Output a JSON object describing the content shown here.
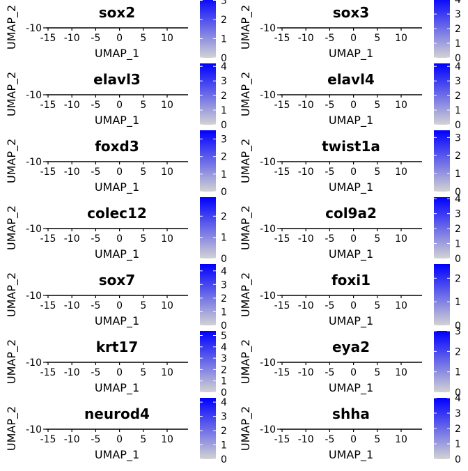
{
  "colors": {
    "low": "#d3d3d3",
    "high": "#0000ff",
    "axis": "#000000"
  },
  "chart_data": [
    {
      "type": "heatmap",
      "title": "sox2",
      "xlabel": "UMAP_1",
      "ylabel": "UMAP_2",
      "xticks": [
        "-15",
        "-10",
        "-5",
        "0",
        "5",
        "10"
      ],
      "yticks": [
        "-10"
      ],
      "xlim": [
        -15,
        14
      ],
      "legend": {
        "ticks": [
          "0",
          "1",
          "2",
          "3"
        ],
        "max": 3.2
      },
      "grid": false,
      "legend_placement": "right"
    },
    {
      "type": "heatmap",
      "title": "sox3",
      "xlabel": "UMAP_1",
      "ylabel": "UMAP_2",
      "xticks": [
        "-15",
        "-10",
        "-5",
        "0",
        "5",
        "10"
      ],
      "yticks": [
        "-10"
      ],
      "xlim": [
        -15,
        14
      ],
      "legend": {
        "ticks": [
          "0",
          "1",
          "2",
          "3",
          "4"
        ],
        "max": 4.2
      },
      "grid": false,
      "legend_placement": "right"
    },
    {
      "type": "heatmap",
      "title": "elavl3",
      "xlabel": "UMAP_1",
      "ylabel": "UMAP_2",
      "xticks": [
        "-15",
        "-10",
        "-5",
        "0",
        "5",
        "10"
      ],
      "yticks": [
        "-10"
      ],
      "xlim": [
        -15,
        14
      ],
      "legend": {
        "ticks": [
          "0",
          "1",
          "2",
          "3",
          "4"
        ],
        "max": 4.2
      },
      "grid": false,
      "legend_placement": "right"
    },
    {
      "type": "heatmap",
      "title": "elavl4",
      "xlabel": "UMAP_1",
      "ylabel": "UMAP_2",
      "xticks": [
        "-15",
        "-10",
        "-5",
        "0",
        "5",
        "10"
      ],
      "yticks": [
        "-10"
      ],
      "xlim": [
        -15,
        14
      ],
      "legend": {
        "ticks": [
          "0",
          "1",
          "2",
          "3",
          "4"
        ],
        "max": 4.2
      },
      "grid": false,
      "legend_placement": "right"
    },
    {
      "type": "heatmap",
      "title": "foxd3",
      "xlabel": "UMAP_1",
      "ylabel": "UMAP_2",
      "xticks": [
        "-15",
        "-10",
        "-5",
        "0",
        "5",
        "10"
      ],
      "yticks": [
        "-10"
      ],
      "xlim": [
        -15,
        14
      ],
      "legend": {
        "ticks": [
          "0",
          "1",
          "2",
          "3"
        ],
        "max": 3.5
      },
      "grid": false,
      "legend_placement": "right"
    },
    {
      "type": "heatmap",
      "title": "twist1a",
      "xlabel": "UMAP_1",
      "ylabel": "UMAP_2",
      "xticks": [
        "-15",
        "-10",
        "-5",
        "0",
        "5",
        "10"
      ],
      "yticks": [
        "-10"
      ],
      "xlim": [
        -15,
        14
      ],
      "legend": {
        "ticks": [
          "0",
          "1",
          "2",
          "3"
        ],
        "max": 3.4
      },
      "grid": false,
      "legend_placement": "right"
    },
    {
      "type": "heatmap",
      "title": "colec12",
      "xlabel": "UMAP_1",
      "ylabel": "UMAP_2",
      "xticks": [
        "-15",
        "-10",
        "-5",
        "0",
        "5",
        "10"
      ],
      "yticks": [
        "-10"
      ],
      "xlim": [
        -15,
        14
      ],
      "legend": {
        "ticks": [
          "0",
          "1",
          "2"
        ],
        "max": 2.9
      },
      "grid": false,
      "legend_placement": "right"
    },
    {
      "type": "heatmap",
      "title": "col9a2",
      "xlabel": "UMAP_1",
      "ylabel": "UMAP_2",
      "xticks": [
        "-15",
        "-10",
        "-5",
        "0",
        "5",
        "10"
      ],
      "yticks": [
        "-10"
      ],
      "xlim": [
        -15,
        14
      ],
      "legend": {
        "ticks": [
          "0",
          "1",
          "2",
          "3",
          "4"
        ],
        "max": 4.1
      },
      "grid": false,
      "legend_placement": "right"
    },
    {
      "type": "heatmap",
      "title": "sox7",
      "xlabel": "UMAP_1",
      "ylabel": "UMAP_2",
      "xticks": [
        "-15",
        "-10",
        "-5",
        "0",
        "5",
        "10"
      ],
      "yticks": [
        "-10"
      ],
      "xlim": [
        -15,
        14
      ],
      "legend": {
        "ticks": [
          "0",
          "1",
          "2",
          "3",
          "4"
        ],
        "max": 4.5
      },
      "grid": false,
      "legend_placement": "right"
    },
    {
      "type": "heatmap",
      "title": "foxi1",
      "xlabel": "UMAP_1",
      "ylabel": "UMAP_2",
      "xticks": [
        "-15",
        "-10",
        "-5",
        "0",
        "5",
        "10"
      ],
      "yticks": [
        "-10"
      ],
      "xlim": [
        -15,
        14
      ],
      "legend": {
        "ticks": [
          "0",
          "1",
          "2"
        ],
        "max": 2.6
      },
      "grid": false,
      "legend_placement": "right"
    },
    {
      "type": "heatmap",
      "title": "krt17",
      "xlabel": "UMAP_1",
      "ylabel": "UMAP_2",
      "xticks": [
        "-15",
        "-10",
        "-5",
        "0",
        "5",
        "10"
      ],
      "yticks": [
        "-10"
      ],
      "xlim": [
        -15,
        14
      ],
      "legend": {
        "ticks": [
          "0",
          "1",
          "2",
          "3",
          "4",
          "5"
        ],
        "max": 5.4
      },
      "grid": false,
      "legend_placement": "right"
    },
    {
      "type": "heatmap",
      "title": "eya2",
      "xlabel": "UMAP_1",
      "ylabel": "UMAP_2",
      "xticks": [
        "-15",
        "-10",
        "-5",
        "0",
        "5",
        "10"
      ],
      "yticks": [
        "-10"
      ],
      "xlim": [
        -15,
        14
      ],
      "legend": {
        "ticks": [
          "0",
          "1",
          "2",
          "3"
        ],
        "max": 3.0
      },
      "grid": false,
      "legend_placement": "right"
    },
    {
      "type": "heatmap",
      "title": "neurod4",
      "xlabel": "UMAP_1",
      "ylabel": "UMAP_2",
      "xticks": [
        "-15",
        "-10",
        "-5",
        "0",
        "5",
        "10"
      ],
      "yticks": [
        "-10"
      ],
      "xlim": [
        -15,
        14
      ],
      "legend": {
        "ticks": [
          "0",
          "1",
          "2",
          "3",
          "4"
        ],
        "max": 4.3
      },
      "grid": false,
      "legend_placement": "right"
    },
    {
      "type": "heatmap",
      "title": "shha",
      "xlabel": "UMAP_1",
      "ylabel": "UMAP_2",
      "xticks": [
        "-15",
        "-10",
        "-5",
        "0",
        "5",
        "10"
      ],
      "yticks": [
        "-10"
      ],
      "xlim": [
        -15,
        14
      ],
      "legend": {
        "ticks": [
          "0",
          "1",
          "2",
          "3",
          "4"
        ],
        "max": 4.0
      },
      "grid": false,
      "legend_placement": "right"
    }
  ]
}
